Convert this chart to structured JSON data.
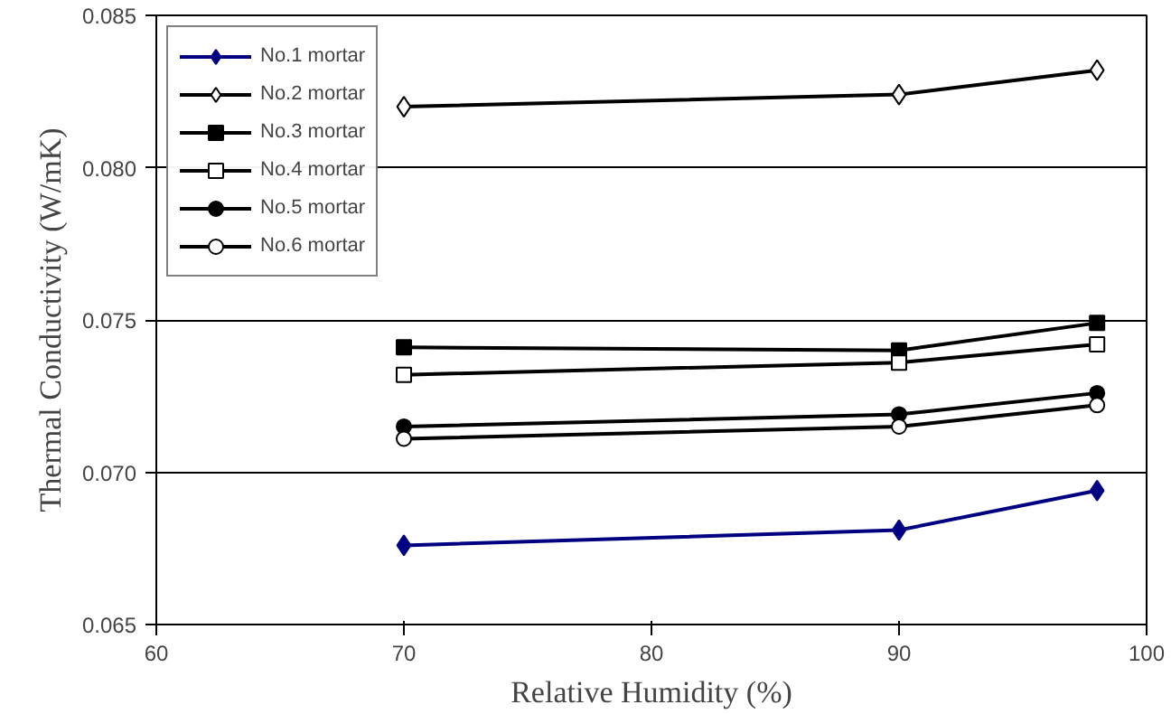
{
  "chart_data": {
    "type": "line",
    "xlabel": "Relative Humidity (%)",
    "ylabel": "Thermal Conductivity (W/mK)",
    "x": [
      70,
      90,
      98
    ],
    "series": [
      {
        "name": "No.1 mortar",
        "color": "#000080",
        "marker": "diamond",
        "values": [
          0.0676,
          0.0681,
          0.0694
        ]
      },
      {
        "name": "No.2 mortar",
        "color": "#000000",
        "marker": "diamond",
        "values": [
          0.082,
          0.0824,
          0.0832
        ]
      },
      {
        "name": "No.3 mortar",
        "color": "#000000",
        "marker": "square",
        "values": [
          0.0741,
          0.074,
          0.0749
        ]
      },
      {
        "name": "No.4 mortar",
        "color": "#000000",
        "marker": "square",
        "values": [
          0.0732,
          0.0736,
          0.0742
        ]
      },
      {
        "name": "No.5 mortar",
        "color": "#000000",
        "marker": "circle",
        "values": [
          0.0715,
          0.0719,
          0.0726
        ]
      },
      {
        "name": "No.6 mortar",
        "color": "#000000",
        "marker": "circle",
        "values": [
          0.0711,
          0.0715,
          0.0722
        ]
      }
    ],
    "xlim": [
      60,
      100
    ],
    "xticks": [
      60,
      70,
      80,
      90,
      100
    ],
    "ylim": [
      0.065,
      0.085
    ],
    "yticks": [
      {
        "value": 0.065,
        "label": "0.065"
      },
      {
        "value": 0.07,
        "label": "0.070"
      },
      {
        "value": 0.075,
        "label": "0.075"
      },
      {
        "value": 0.08,
        "label": "0.080"
      },
      {
        "value": 0.085,
        "label": "0.085"
      }
    ],
    "grid": "y",
    "legend": "top left",
    "line_style": "solid"
  }
}
